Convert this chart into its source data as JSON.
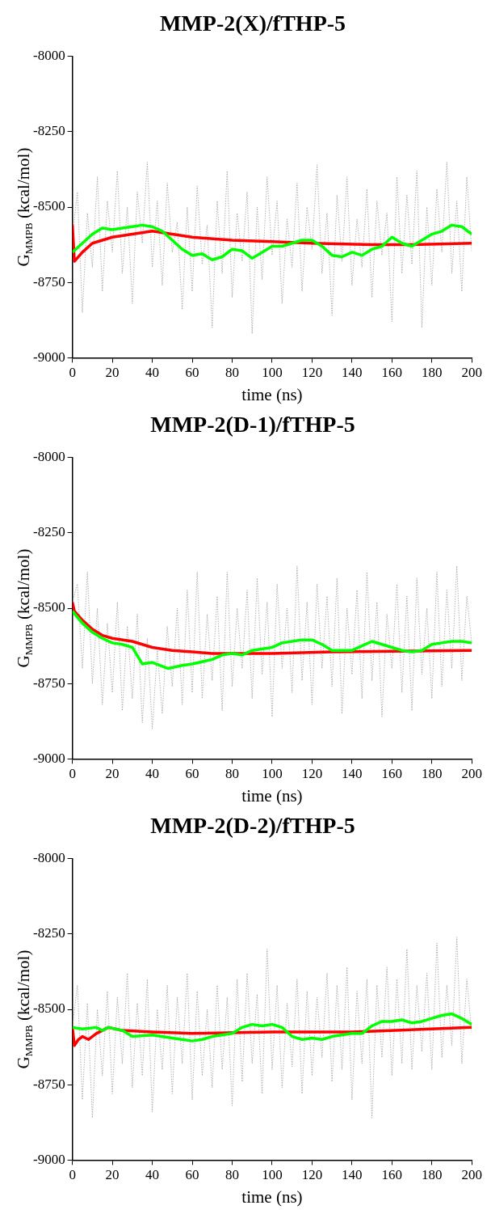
{
  "chart_data": [
    {
      "type": "line",
      "title": "MMP-2(X)/fTHP-5",
      "xlabel": "time (ns)",
      "ylabel": "G$_{MMPB}$ (kcal/mol)",
      "xlim": [
        0,
        200
      ],
      "xticks": [
        0,
        20,
        40,
        60,
        80,
        100,
        120,
        140,
        160,
        180,
        200
      ],
      "ylim": [
        -9000,
        -8000
      ],
      "yticks": [
        -9000,
        -8750,
        -8500,
        -8250,
        -8000
      ],
      "grid": false,
      "legend": false,
      "marker": "none",
      "series": [
        {
          "color": "#a0a0a0",
          "line_style": "dotted",
          "x": [
            0,
            2.5,
            5,
            7.5,
            10,
            12.5,
            15,
            17.5,
            20,
            22.5,
            25,
            27.5,
            30,
            32.5,
            35,
            37.5,
            40,
            42.5,
            45,
            47.5,
            50,
            52.5,
            55,
            57.5,
            60,
            62.5,
            65,
            67.5,
            70,
            72.5,
            75,
            77.5,
            80,
            82.5,
            85,
            87.5,
            90,
            92.5,
            95,
            97.5,
            100,
            102.5,
            105,
            107.5,
            110,
            112.5,
            115,
            117.5,
            120,
            122.5,
            125,
            127.5,
            130,
            132.5,
            135,
            137.5,
            140,
            142.5,
            145,
            147.5,
            150,
            152.5,
            155,
            157.5,
            160,
            162.5,
            165,
            167.5,
            170,
            172.5,
            175,
            177.5,
            180,
            182.5,
            185,
            187.5,
            190,
            192.5,
            195,
            197.5,
            200
          ],
          "values": [
            -8600,
            -8450,
            -8850,
            -8520,
            -8700,
            -8400,
            -8780,
            -8480,
            -8650,
            -8380,
            -8720,
            -8500,
            -8820,
            -8450,
            -8620,
            -8350,
            -8700,
            -8480,
            -8760,
            -8420,
            -8650,
            -8550,
            -8840,
            -8500,
            -8780,
            -8430,
            -8690,
            -8560,
            -8900,
            -8480,
            -8720,
            -8380,
            -8800,
            -8520,
            -8680,
            -8450,
            -8920,
            -8500,
            -8740,
            -8400,
            -8660,
            -8480,
            -8820,
            -8540,
            -8700,
            -8420,
            -8780,
            -8500,
            -8640,
            -8360,
            -8720,
            -8520,
            -8860,
            -8460,
            -8680,
            -8400,
            -8760,
            -8540,
            -8700,
            -8440,
            -8800,
            -8480,
            -8660,
            -8520,
            -8880,
            -8400,
            -8720,
            -8460,
            -8690,
            -8380,
            -8900,
            -8500,
            -8760,
            -8440,
            -8650,
            -8350,
            -8720,
            -8480,
            -8780,
            -8400,
            -8650
          ]
        },
        {
          "color": "#ff0000",
          "line_style": "solid",
          "x": [
            0,
            1,
            5,
            10,
            20,
            30,
            40,
            50,
            60,
            80,
            100,
            120,
            150,
            170,
            200
          ],
          "values": [
            -8560,
            -8680,
            -8650,
            -8620,
            -8600,
            -8590,
            -8580,
            -8590,
            -8600,
            -8610,
            -8615,
            -8620,
            -8625,
            -8625,
            -8620
          ]
        },
        {
          "color": "#00ff00",
          "line_style": "solid",
          "x": [
            0,
            5,
            10,
            15,
            20,
            25,
            30,
            35,
            40,
            45,
            50,
            55,
            60,
            65,
            70,
            75,
            80,
            85,
            90,
            95,
            100,
            105,
            110,
            115,
            120,
            125,
            130,
            135,
            140,
            145,
            150,
            155,
            160,
            165,
            170,
            175,
            180,
            185,
            190,
            195,
            200
          ],
          "values": [
            -8650,
            -8620,
            -8590,
            -8570,
            -8575,
            -8570,
            -8565,
            -8560,
            -8565,
            -8580,
            -8610,
            -8640,
            -8660,
            -8655,
            -8675,
            -8665,
            -8640,
            -8645,
            -8670,
            -8650,
            -8630,
            -8630,
            -8620,
            -8610,
            -8610,
            -8630,
            -8660,
            -8665,
            -8650,
            -8660,
            -8640,
            -8630,
            -8600,
            -8620,
            -8630,
            -8610,
            -8590,
            -8580,
            -8560,
            -8565,
            -8590
          ]
        }
      ]
    },
    {
      "type": "line",
      "title": "MMP-2(D-1)/fTHP-5",
      "xlabel": "time (ns)",
      "ylabel": "G$_{MMPB}$ (kcal/mol)",
      "xlim": [
        0,
        200
      ],
      "xticks": [
        0,
        20,
        40,
        60,
        80,
        100,
        120,
        140,
        160,
        180,
        200
      ],
      "ylim": [
        -9000,
        -8000
      ],
      "yticks": [
        -9000,
        -8750,
        -8500,
        -8250,
        -8000
      ],
      "grid": false,
      "legend": false,
      "marker": "none",
      "series": [
        {
          "color": "#a0a0a0",
          "line_style": "dotted",
          "x": [
            0,
            2.5,
            5,
            7.5,
            10,
            12.5,
            15,
            17.5,
            20,
            22.5,
            25,
            27.5,
            30,
            32.5,
            35,
            37.5,
            40,
            42.5,
            45,
            47.5,
            50,
            52.5,
            55,
            57.5,
            60,
            62.5,
            65,
            67.5,
            70,
            72.5,
            75,
            77.5,
            80,
            82.5,
            85,
            87.5,
            90,
            92.5,
            95,
            97.5,
            100,
            102.5,
            105,
            107.5,
            110,
            112.5,
            115,
            117.5,
            120,
            122.5,
            125,
            127.5,
            130,
            132.5,
            135,
            137.5,
            140,
            142.5,
            145,
            147.5,
            150,
            152.5,
            155,
            157.5,
            160,
            162.5,
            165,
            167.5,
            170,
            172.5,
            175,
            177.5,
            180,
            182.5,
            185,
            187.5,
            190,
            192.5,
            195,
            197.5,
            200
          ],
          "values": [
            -8480,
            -8420,
            -8700,
            -8380,
            -8750,
            -8500,
            -8820,
            -8550,
            -8780,
            -8480,
            -8840,
            -8560,
            -8800,
            -8520,
            -8880,
            -8600,
            -8900,
            -8640,
            -8850,
            -8560,
            -8760,
            -8500,
            -8820,
            -8440,
            -8780,
            -8380,
            -8800,
            -8520,
            -8740,
            -8460,
            -8840,
            -8380,
            -8760,
            -8500,
            -8700,
            -8440,
            -8800,
            -8400,
            -8720,
            -8480,
            -8860,
            -8420,
            -8700,
            -8500,
            -8780,
            -8360,
            -8740,
            -8480,
            -8820,
            -8420,
            -8700,
            -8460,
            -8760,
            -8400,
            -8850,
            -8500,
            -8720,
            -8440,
            -8800,
            -8380,
            -8740,
            -8480,
            -8860,
            -8520,
            -8700,
            -8420,
            -8780,
            -8460,
            -8840,
            -8400,
            -8720,
            -8500,
            -8800,
            -8380,
            -8760,
            -8440,
            -8700,
            -8360,
            -8740,
            -8460,
            -8620
          ]
        },
        {
          "color": "#ff0000",
          "line_style": "solid",
          "x": [
            0,
            1,
            5,
            10,
            15,
            20,
            30,
            40,
            50,
            60,
            70,
            100,
            130,
            200
          ],
          "values": [
            -8480,
            -8510,
            -8540,
            -8570,
            -8590,
            -8600,
            -8610,
            -8630,
            -8640,
            -8645,
            -8650,
            -8650,
            -8645,
            -8640
          ]
        },
        {
          "color": "#00ff00",
          "line_style": "solid",
          "x": [
            0,
            5,
            10,
            15,
            20,
            25,
            30,
            35,
            40,
            48,
            55,
            60,
            70,
            75,
            80,
            85,
            90,
            100,
            105,
            110,
            115,
            120,
            125,
            130,
            135,
            140,
            145,
            150,
            155,
            160,
            165,
            170,
            175,
            180,
            185,
            190,
            195,
            200
          ],
          "values": [
            -8510,
            -8550,
            -8580,
            -8600,
            -8615,
            -8620,
            -8630,
            -8685,
            -8680,
            -8700,
            -8690,
            -8685,
            -8670,
            -8655,
            -8650,
            -8655,
            -8640,
            -8630,
            -8615,
            -8610,
            -8605,
            -8605,
            -8620,
            -8640,
            -8640,
            -8640,
            -8625,
            -8610,
            -8620,
            -8630,
            -8640,
            -8645,
            -8640,
            -8620,
            -8615,
            -8610,
            -8610,
            -8615
          ]
        }
      ]
    },
    {
      "type": "line",
      "title": "MMP-2(D-2)/fTHP-5",
      "xlabel": "time (ns)",
      "ylabel": "G$_{MMPB}$ (kcal/mol)",
      "xlim": [
        0,
        200
      ],
      "xticks": [
        0,
        20,
        40,
        60,
        80,
        100,
        120,
        140,
        160,
        180,
        200
      ],
      "ylim": [
        -9000,
        -8000
      ],
      "yticks": [
        -9000,
        -8750,
        -8500,
        -8250,
        -8000
      ],
      "grid": false,
      "legend": false,
      "marker": "none",
      "series": [
        {
          "color": "#a0a0a0",
          "line_style": "dotted",
          "x": [
            0,
            2.5,
            5,
            7.5,
            10,
            12.5,
            15,
            17.5,
            20,
            22.5,
            25,
            27.5,
            30,
            32.5,
            35,
            37.5,
            40,
            42.5,
            45,
            47.5,
            50,
            52.5,
            55,
            57.5,
            60,
            62.5,
            65,
            67.5,
            70,
            72.5,
            75,
            77.5,
            80,
            82.5,
            85,
            87.5,
            90,
            92.5,
            95,
            97.5,
            100,
            102.5,
            105,
            107.5,
            110,
            112.5,
            115,
            117.5,
            120,
            122.5,
            125,
            127.5,
            130,
            132.5,
            135,
            137.5,
            140,
            142.5,
            145,
            147.5,
            150,
            152.5,
            155,
            157.5,
            160,
            162.5,
            165,
            167.5,
            170,
            172.5,
            175,
            177.5,
            180,
            182.5,
            185,
            187.5,
            190,
            192.5,
            195,
            197.5,
            200
          ],
          "values": [
            -8560,
            -8420,
            -8800,
            -8480,
            -8860,
            -8500,
            -8720,
            -8440,
            -8780,
            -8460,
            -8680,
            -8380,
            -8760,
            -8480,
            -8720,
            -8400,
            -8840,
            -8500,
            -8700,
            -8420,
            -8780,
            -8460,
            -8680,
            -8380,
            -8800,
            -8440,
            -8720,
            -8500,
            -8760,
            -8420,
            -8700,
            -8460,
            -8820,
            -8400,
            -8740,
            -8380,
            -8680,
            -8450,
            -8780,
            -8300,
            -8700,
            -8420,
            -8760,
            -8480,
            -8690,
            -8400,
            -8780,
            -8440,
            -8720,
            -8460,
            -8660,
            -8380,
            -8740,
            -8420,
            -8700,
            -8360,
            -8800,
            -8440,
            -8680,
            -8400,
            -8860,
            -8420,
            -8660,
            -8360,
            -8720,
            -8400,
            -8680,
            -8300,
            -8700,
            -8420,
            -8640,
            -8380,
            -8700,
            -8280,
            -8660,
            -8420,
            -8620,
            -8260,
            -8680,
            -8400,
            -8580
          ]
        },
        {
          "color": "#ff0000",
          "line_style": "solid",
          "x": [
            0,
            1,
            3,
            5,
            8,
            12,
            18,
            25,
            40,
            60,
            100,
            140,
            200
          ],
          "values": [
            -8560,
            -8620,
            -8600,
            -8590,
            -8600,
            -8580,
            -8560,
            -8570,
            -8575,
            -8580,
            -8575,
            -8575,
            -8560
          ]
        },
        {
          "color": "#00ff00",
          "line_style": "solid",
          "x": [
            0,
            5,
            12,
            15,
            18,
            25,
            30,
            40,
            50,
            55,
            60,
            65,
            70,
            80,
            85,
            90,
            95,
            100,
            105,
            110,
            115,
            120,
            125,
            130,
            140,
            145,
            150,
            155,
            160,
            165,
            170,
            175,
            180,
            185,
            190,
            195,
            200
          ],
          "values": [
            -8560,
            -8565,
            -8560,
            -8570,
            -8560,
            -8570,
            -8590,
            -8585,
            -8595,
            -8600,
            -8605,
            -8600,
            -8590,
            -8580,
            -8560,
            -8550,
            -8555,
            -8550,
            -8560,
            -8590,
            -8600,
            -8595,
            -8600,
            -8590,
            -8580,
            -8580,
            -8555,
            -8540,
            -8540,
            -8535,
            -8545,
            -8540,
            -8530,
            -8520,
            -8515,
            -8530,
            -8550
          ]
        }
      ]
    }
  ]
}
